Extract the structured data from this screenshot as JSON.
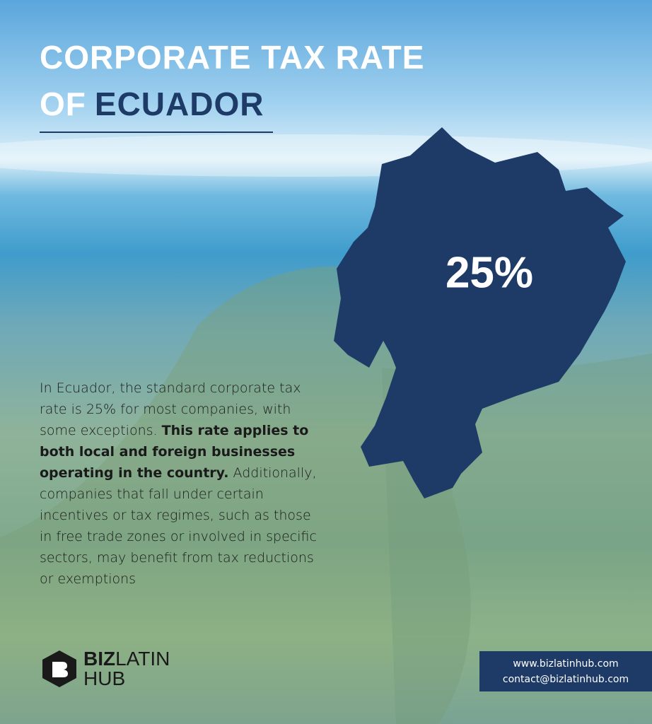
{
  "title": {
    "line1": "CORPORATE TAX RATE",
    "line2_prefix": "OF",
    "highlight": "ECUADOR"
  },
  "rate": "25%",
  "paragraph": [
    {
      "text": "In Ecuador, the standard corporate tax rate is ",
      "bold": false
    },
    {
      "text": "25% for most companies, with some exceptions. ",
      "bold": false
    },
    {
      "text": "This rate applies to both local and foreign businesses operating in the country.",
      "bold": true
    },
    {
      "text": " Additionally, companies that fall under certain incentives or tax regimes, such as those in free trade zones or involved in specific sectors, may benefit from tax reductions or exemptions",
      "bold": false
    }
  ],
  "logo": {
    "bold": "BIZ",
    "light": "LATIN",
    "line2": "HUB"
  },
  "contact": {
    "website": "www.bizlatinhub.com",
    "email": "contact@bizlatinhub.com"
  }
}
